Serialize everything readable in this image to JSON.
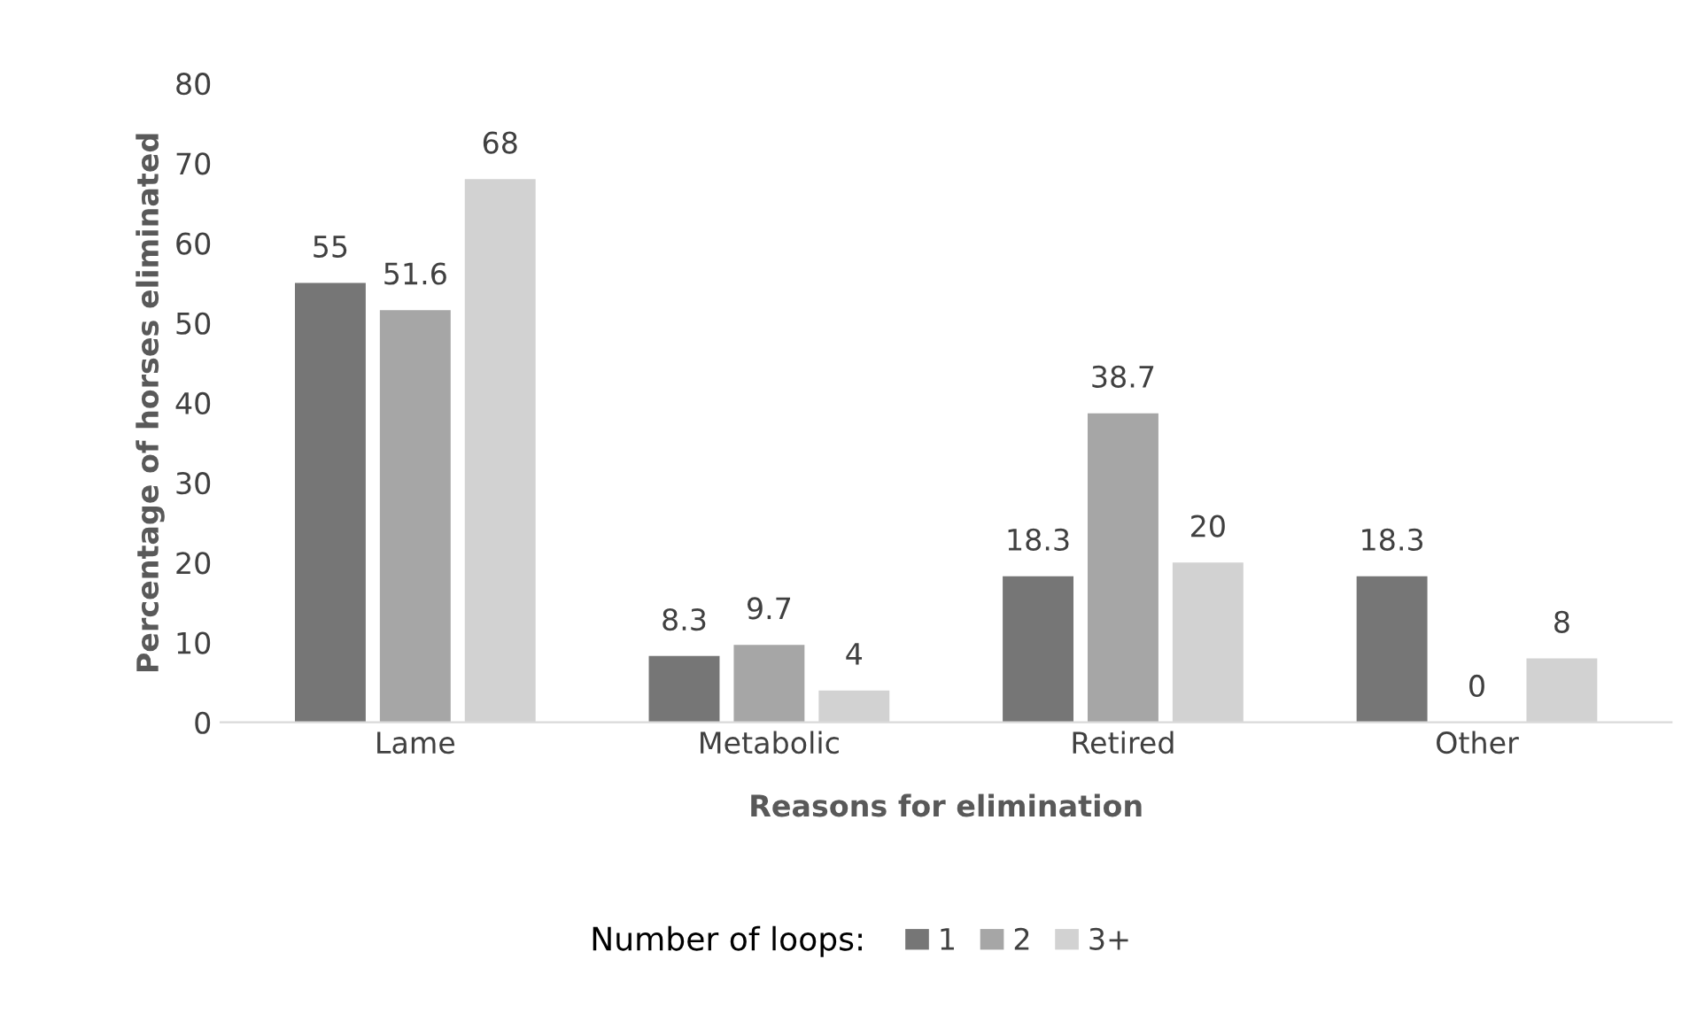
{
  "chart_data": {
    "type": "bar",
    "xlabel": "Reasons for elimination",
    "ylabel": "Percentage of horses eliminated",
    "legend_title": "Number of loops:",
    "categories": [
      "Lame",
      "Metabolic",
      "Retired",
      "Other"
    ],
    "series": [
      {
        "name": "1",
        "color": "#767676",
        "values": [
          55,
          8.3,
          18.3,
          18.3
        ]
      },
      {
        "name": "2",
        "color": "#a6a6a6",
        "values": [
          51.6,
          9.7,
          38.7,
          0
        ]
      },
      {
        "name": "3+",
        "color": "#d2d2d2",
        "values": [
          68,
          4,
          20,
          8
        ]
      }
    ],
    "ylim": [
      0,
      80
    ],
    "yticks": [
      0,
      10,
      20,
      30,
      40,
      50,
      60,
      70,
      80
    ],
    "data_labels": true,
    "legend": "bottom"
  }
}
